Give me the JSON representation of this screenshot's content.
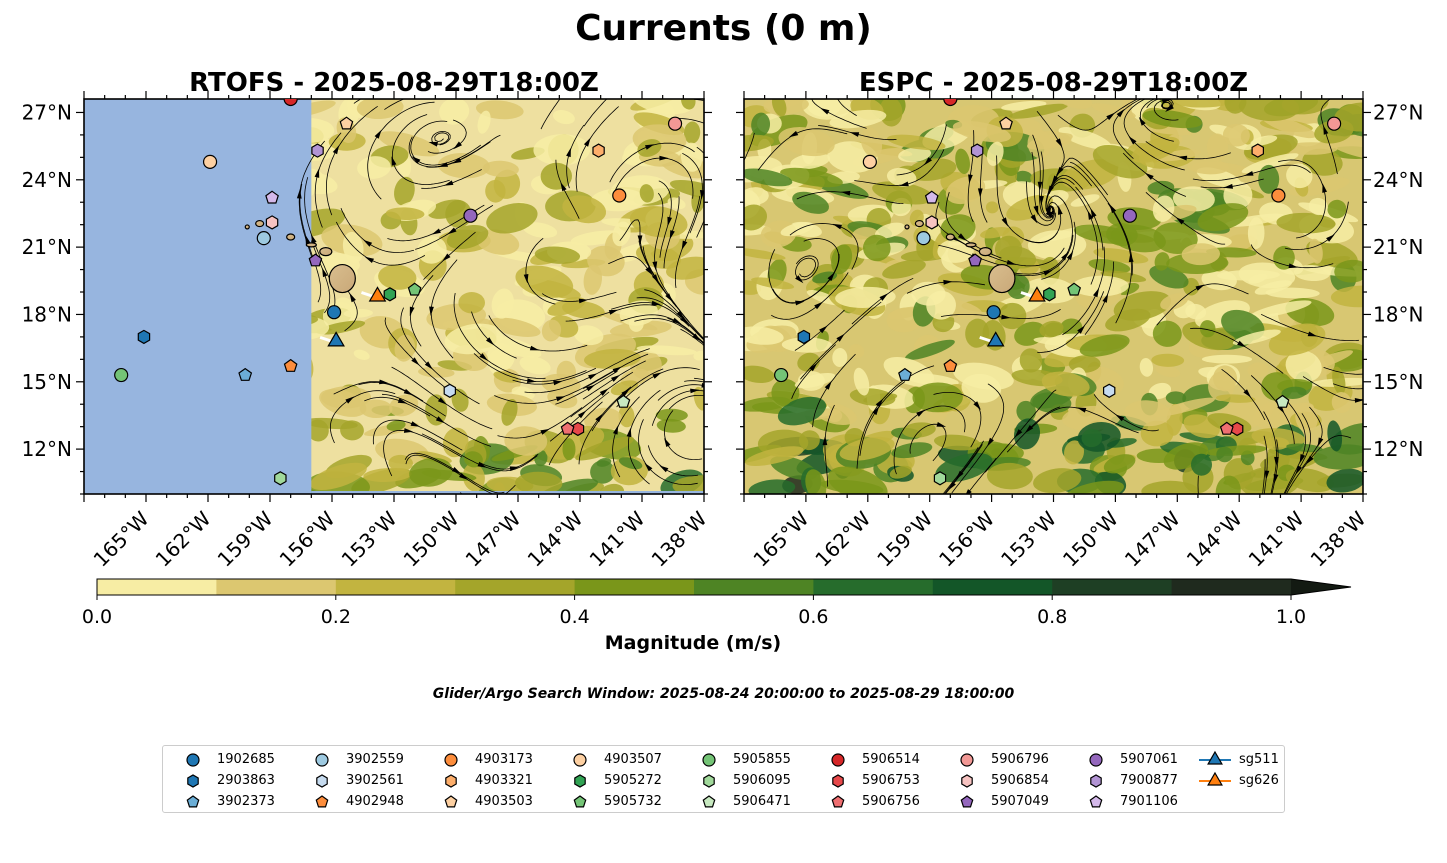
{
  "title": "Currents (0 m)",
  "search_window": "Glider/Argo Search Window: 2025-08-24 20:00:00 to 2025-08-29 18:00:00",
  "chart_data": {
    "type": "map",
    "panels": [
      {
        "title": "RTOFS - 2025-08-29T18:00Z",
        "model": "RTOFS",
        "lat_tick_side": "left",
        "masked_lon_west_of": -157.0
      },
      {
        "title": "ESPC - 2025-08-29T18:00Z",
        "model": "ESPC",
        "lat_tick_side": "right"
      }
    ],
    "lon_range": [
      -168.0,
      -138.0
    ],
    "lat_range": [
      10.0,
      27.6
    ],
    "lon_ticks": [
      -165,
      -162,
      -159,
      -156,
      -153,
      -150,
      -147,
      -144,
      -141,
      -138
    ],
    "lon_tick_labels": [
      "165°W",
      "162°W",
      "159°W",
      "156°W",
      "153°W",
      "150°W",
      "147°W",
      "144°W",
      "141°W",
      "138°W"
    ],
    "lat_ticks": [
      12,
      15,
      18,
      21,
      24,
      27
    ],
    "lat_tick_labels": [
      "12°N",
      "15°N",
      "18°N",
      "21°N",
      "24°N",
      "27°N"
    ],
    "colorbar": {
      "label": "Magnitude (m/s)",
      "min": 0.0,
      "max": 1.0,
      "extend": "max",
      "ticks": [
        0.0,
        0.2,
        0.4,
        0.6,
        0.8,
        1.0
      ],
      "tick_labels": [
        "0.0",
        "0.2",
        "0.4",
        "0.6",
        "0.8",
        "1.0"
      ],
      "colors": [
        "#f7eda4",
        "#dcc770",
        "#c2b440",
        "#a4a52a",
        "#7a961a",
        "#4e8424",
        "#266c2c",
        "#135628",
        "#1e3f24",
        "#1f2a1e",
        "#131a12"
      ]
    },
    "platforms": [
      {
        "id": "1902685",
        "marker": "circle",
        "color": "#1f77b4",
        "lon": -155.9,
        "lat": 18.1
      },
      {
        "id": "2903863",
        "marker": "hexagon",
        "color": "#1f77b4",
        "lon": -165.1,
        "lat": 17.0
      },
      {
        "id": "3902373",
        "marker": "pentagon",
        "color": "#6baed6",
        "lon": -160.2,
        "lat": 15.3
      },
      {
        "id": "3902559",
        "marker": "circle",
        "color": "#9ecae1",
        "lon": -159.3,
        "lat": 21.4
      },
      {
        "id": "3902561",
        "marker": "hexagon",
        "color": "#c6dbef",
        "lon": -150.3,
        "lat": 14.6
      },
      {
        "id": "4902948",
        "marker": "pentagon",
        "color": "#fd8d3c",
        "lon": -158.0,
        "lat": 15.7
      },
      {
        "id": "4903173",
        "marker": "circle",
        "color": "#fd8d3c",
        "lon": -142.1,
        "lat": 23.3
      },
      {
        "id": "4903321",
        "marker": "hexagon",
        "color": "#fdae6b",
        "lon": -143.1,
        "lat": 25.3
      },
      {
        "id": "4903503",
        "marker": "pentagon",
        "color": "#fdd0a2",
        "lon": -155.3,
        "lat": 26.5
      },
      {
        "id": "4903507",
        "marker": "circle",
        "color": "#fdd0a2",
        "lon": -161.9,
        "lat": 24.8
      },
      {
        "id": "5905272",
        "marker": "hexagon",
        "color": "#31a354",
        "lon": -153.2,
        "lat": 18.9
      },
      {
        "id": "5905732",
        "marker": "pentagon",
        "color": "#74c476",
        "lon": -152.0,
        "lat": 19.1
      },
      {
        "id": "5905855",
        "marker": "circle",
        "color": "#74c476",
        "lon": -166.2,
        "lat": 15.3
      },
      {
        "id": "5906095",
        "marker": "hexagon",
        "color": "#a1d99b",
        "lon": -158.5,
        "lat": 10.7
      },
      {
        "id": "5906471",
        "marker": "pentagon",
        "color": "#c7e9c0",
        "lon": -141.9,
        "lat": 14.1
      },
      {
        "id": "5906514",
        "marker": "circle",
        "color": "#d62728",
        "lon": -158.0,
        "lat": 27.6
      },
      {
        "id": "5906753",
        "marker": "hexagon",
        "color": "#e7484a",
        "lon": -144.1,
        "lat": 12.9
      },
      {
        "id": "5906756",
        "marker": "pentagon",
        "color": "#ef6f71",
        "lon": -144.6,
        "lat": 12.9
      },
      {
        "id": "5906796",
        "marker": "circle",
        "color": "#f29895",
        "lon": -139.4,
        "lat": 26.5
      },
      {
        "id": "5906854",
        "marker": "hexagon",
        "color": "#f7c3c1",
        "lon": -158.9,
        "lat": 22.1
      },
      {
        "id": "5907049",
        "marker": "pentagon",
        "color": "#9467bd",
        "lon": -156.8,
        "lat": 20.4
      },
      {
        "id": "5907061",
        "marker": "circle",
        "color": "#9467bd",
        "lon": -149.3,
        "lat": 22.4
      },
      {
        "id": "7900877",
        "marker": "hexagon",
        "color": "#b294d4",
        "lon": -156.7,
        "lat": 25.3
      },
      {
        "id": "7901106",
        "marker": "pentagon",
        "color": "#d4b9ea",
        "lon": -158.9,
        "lat": 23.2
      }
    ],
    "gliders": [
      {
        "id": "sg511",
        "marker": "triangle",
        "color": "#1f77b4",
        "lon": -155.8,
        "lat": 16.8
      },
      {
        "id": "sg626",
        "marker": "triangle",
        "color": "#ff7f0e",
        "lon": -153.8,
        "lat": 18.8
      }
    ]
  }
}
